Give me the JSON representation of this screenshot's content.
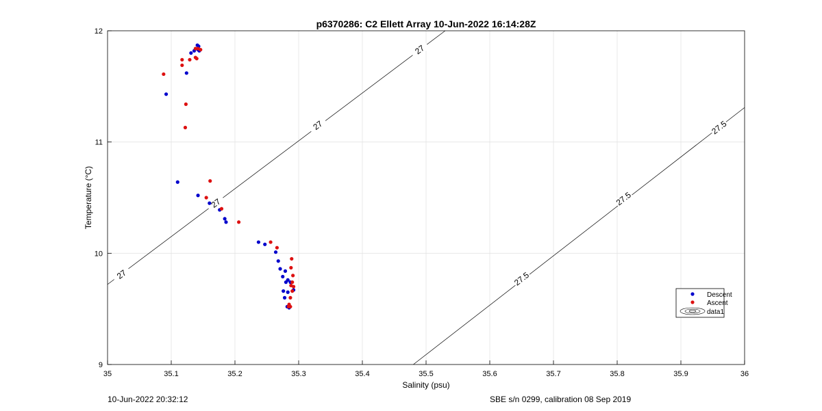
{
  "chart_data": {
    "type": "scatter",
    "title": "p6370286: C2 Ellett Array 10-Jun-2022 16:14:28Z",
    "xlabel": "Salinity (psu)",
    "ylabel": "Temperature (°C)",
    "xlim": [
      35,
      36
    ],
    "ylim": [
      9,
      12
    ],
    "xticks": [
      35,
      35.1,
      35.2,
      35.3,
      35.4,
      35.5,
      35.6,
      35.7,
      35.8,
      35.9,
      36
    ],
    "xtick_labels": [
      "35",
      "35.1",
      "35.2",
      "35.3",
      "35.4",
      "35.5",
      "35.6",
      "35.7",
      "35.8",
      "35.9",
      "36"
    ],
    "yticks": [
      9,
      10,
      11,
      12
    ],
    "ytick_labels": [
      "9",
      "10",
      "11",
      "12"
    ],
    "grid": true,
    "legend_position": "bottom-right",
    "legend": [
      "Descent",
      "Ascent",
      "data1"
    ],
    "series": [
      {
        "name": "Descent",
        "color": "#0000cc",
        "points": [
          [
            35.141,
            11.87
          ],
          [
            35.143,
            11.86
          ],
          [
            35.142,
            11.83
          ],
          [
            35.144,
            11.82
          ],
          [
            35.136,
            11.82
          ],
          [
            35.131,
            11.8
          ],
          [
            35.124,
            11.62
          ],
          [
            35.092,
            11.43
          ],
          [
            35.11,
            10.64
          ],
          [
            35.142,
            10.52
          ],
          [
            35.16,
            10.45
          ],
          [
            35.176,
            10.39
          ],
          [
            35.184,
            10.31
          ],
          [
            35.186,
            10.28
          ],
          [
            35.237,
            10.1
          ],
          [
            35.247,
            10.08
          ],
          [
            35.264,
            10.01
          ],
          [
            35.268,
            9.93
          ],
          [
            35.271,
            9.86
          ],
          [
            35.279,
            9.84
          ],
          [
            35.275,
            9.79
          ],
          [
            35.283,
            9.76
          ],
          [
            35.28,
            9.74
          ],
          [
            35.287,
            9.74
          ],
          [
            35.276,
            9.66
          ],
          [
            35.283,
            9.65
          ],
          [
            35.278,
            9.6
          ],
          [
            35.282,
            9.52
          ],
          [
            35.285,
            9.51
          ],
          [
            35.292,
            9.67
          ]
        ]
      },
      {
        "name": "Ascent",
        "color": "#dd1111",
        "points": [
          [
            35.088,
            11.61
          ],
          [
            35.117,
            11.74
          ],
          [
            35.117,
            11.69
          ],
          [
            35.129,
            11.74
          ],
          [
            35.138,
            11.76
          ],
          [
            35.14,
            11.75
          ],
          [
            35.138,
            11.84
          ],
          [
            35.142,
            11.84
          ],
          [
            35.146,
            11.83
          ],
          [
            35.123,
            11.34
          ],
          [
            35.122,
            11.13
          ],
          [
            35.161,
            10.65
          ],
          [
            35.155,
            10.5
          ],
          [
            35.179,
            10.4
          ],
          [
            35.206,
            10.28
          ],
          [
            35.256,
            10.1
          ],
          [
            35.266,
            10.05
          ],
          [
            35.289,
            9.95
          ],
          [
            35.288,
            9.87
          ],
          [
            35.291,
            9.8
          ],
          [
            35.29,
            9.74
          ],
          [
            35.288,
            9.71
          ],
          [
            35.292,
            9.7
          ],
          [
            35.29,
            9.66
          ],
          [
            35.287,
            9.6
          ],
          [
            35.285,
            9.54
          ],
          [
            35.287,
            9.52
          ],
          [
            35.284,
            9.52
          ]
        ]
      }
    ],
    "contours": [
      {
        "level": "27",
        "points": [
          [
            35.0,
            9.72
          ],
          [
            35.53,
            12.0
          ]
        ],
        "labels": [
          [
            35.022,
            9.81
          ],
          [
            35.17,
            10.45
          ],
          [
            35.33,
            11.15
          ],
          [
            35.49,
            11.83
          ]
        ]
      },
      {
        "level": "27.5",
        "points": [
          [
            35.48,
            9.0
          ],
          [
            36.0,
            11.31
          ]
        ],
        "labels": [
          [
            35.65,
            9.77
          ],
          [
            35.81,
            10.49
          ],
          [
            35.96,
            11.13
          ]
        ]
      }
    ]
  },
  "footer": {
    "timestamp": "10-Jun-2022 20:32:12",
    "instrument": "SBE s/n 0299, calibration 08 Sep 2019"
  }
}
